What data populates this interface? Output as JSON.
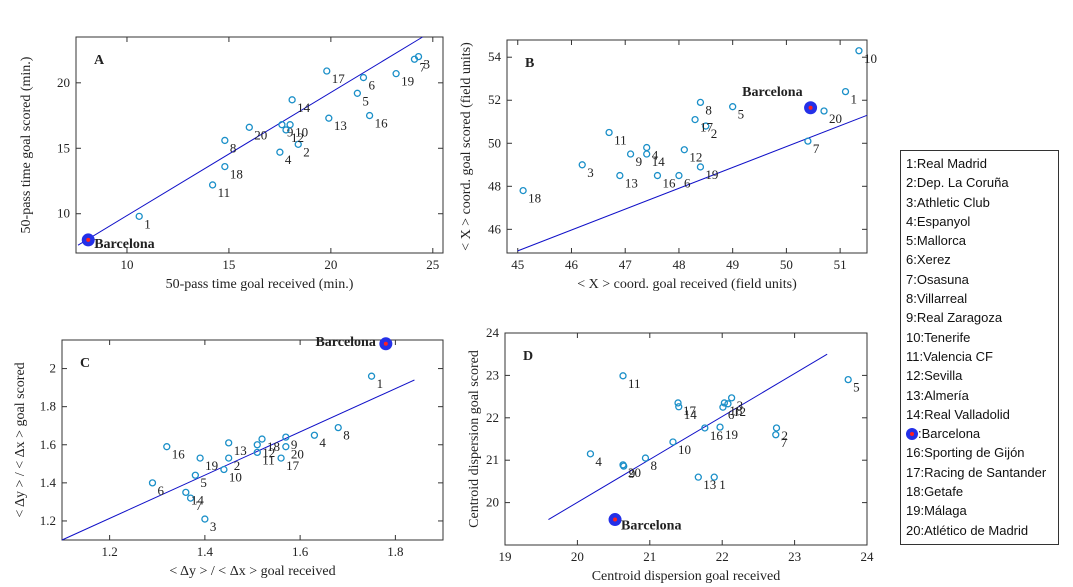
{
  "chart_data": [
    {
      "type": "scatter",
      "panel_label": "A",
      "xlabel": "50-pass time goal received (min.)",
      "ylabel": "50-pass time goal scored (min.)",
      "xlim": [
        7.5,
        25.5
      ],
      "ylim": [
        7,
        23.5
      ],
      "xticks": [
        10,
        15,
        20,
        25
      ],
      "yticks": [
        10,
        15,
        20
      ],
      "labels": [
        "1",
        "2",
        "3",
        "4",
        "5",
        "6",
        "7",
        "8",
        "9",
        "10",
        "11",
        "12",
        "13",
        "14",
        "Barcelona",
        "16",
        "17",
        "18",
        "19",
        "20"
      ],
      "x": [
        10.6,
        18.4,
        24.3,
        17.5,
        21.3,
        21.6,
        24.1,
        14.8,
        17.6,
        18.0,
        14.2,
        17.8,
        19.9,
        18.1,
        8.1,
        21.9,
        19.8,
        14.8,
        23.2,
        16.0
      ],
      "y": [
        9.8,
        15.3,
        22.0,
        14.7,
        19.2,
        20.4,
        21.8,
        15.6,
        16.8,
        16.8,
        12.2,
        16.4,
        17.3,
        18.7,
        8.0,
        17.5,
        20.9,
        13.6,
        20.7,
        16.6
      ],
      "fit": {
        "x": [
          7.6,
          24.5
        ],
        "y": [
          7.6,
          23.5
        ]
      },
      "highlight_index": 14,
      "marker_color": "#1a8fc8",
      "highlight_color": "#2430e8",
      "highlight_dot": "#ff2020",
      "line_color": "#1010c8"
    },
    {
      "type": "scatter",
      "panel_label": "B",
      "xlabel": "< X > coord. goal received (field units)",
      "ylabel": "< X > coord. goal scored (field units)",
      "xlim": [
        44.8,
        51.5
      ],
      "ylim": [
        44.9,
        54.8
      ],
      "xticks": [
        45,
        46,
        47,
        48,
        49,
        50,
        51
      ],
      "yticks": [
        46,
        48,
        50,
        52,
        54
      ],
      "labels": [
        "1",
        "2",
        "3",
        "4",
        "5",
        "6",
        "7",
        "8",
        "9",
        "10",
        "11",
        "12",
        "13",
        "14",
        "Barcelona",
        "16",
        "17",
        "18",
        "19",
        "20"
      ],
      "x": [
        51.1,
        48.5,
        46.2,
        47.4,
        49.0,
        48.0,
        50.4,
        48.4,
        47.1,
        51.35,
        46.7,
        48.1,
        46.9,
        47.4,
        50.45,
        47.6,
        48.3,
        45.1,
        48.4,
        50.7
      ],
      "y": [
        52.4,
        50.8,
        49.0,
        49.8,
        51.7,
        48.5,
        50.1,
        51.9,
        49.5,
        54.3,
        50.5,
        49.7,
        48.5,
        49.5,
        51.65,
        48.5,
        51.1,
        47.8,
        48.9,
        51.5
      ],
      "fit": {
        "x": [
          45,
          51.5
        ],
        "y": [
          45,
          51.3
        ]
      },
      "highlight_index": 14,
      "marker_color": "#1a8fc8",
      "highlight_color": "#2430e8",
      "highlight_dot": "#ff2020",
      "line_color": "#1010c8"
    },
    {
      "type": "scatter",
      "panel_label": "C",
      "xlabel": "< Δy > / < Δx > goal received",
      "ylabel": "< Δy > / < Δx > goal scored",
      "xlim": [
        1.1,
        1.9
      ],
      "ylim": [
        1.1,
        2.15
      ],
      "xticks": [
        1.2,
        1.4,
        1.6,
        1.8
      ],
      "yticks": [
        1.2,
        1.4,
        1.6,
        1.8,
        2
      ],
      "labels": [
        "1",
        "2",
        "3",
        "4",
        "5",
        "6",
        "7",
        "8",
        "9",
        "10",
        "11",
        "12",
        "13",
        "14",
        "Barcelona",
        "16",
        "17",
        "18",
        "19",
        "20"
      ],
      "x": [
        1.75,
        1.45,
        1.4,
        1.63,
        1.38,
        1.29,
        1.37,
        1.68,
        1.57,
        1.44,
        1.51,
        1.51,
        1.45,
        1.36,
        1.78,
        1.32,
        1.56,
        1.52,
        1.39,
        1.57
      ],
      "y": [
        1.96,
        1.53,
        1.21,
        1.65,
        1.44,
        1.4,
        1.32,
        1.69,
        1.64,
        1.47,
        1.56,
        1.6,
        1.61,
        1.35,
        2.13,
        1.59,
        1.53,
        1.63,
        1.53,
        1.59
      ],
      "fit": {
        "x": [
          1.1,
          1.84
        ],
        "y": [
          1.1,
          1.94
        ]
      },
      "highlight_index": 14,
      "marker_color": "#1a8fc8",
      "highlight_color": "#2430e8",
      "highlight_dot": "#ff2020",
      "line_color": "#1010c8"
    },
    {
      "type": "scatter",
      "panel_label": "D",
      "xlabel": "Centroid dispersion goal received",
      "ylabel": "Centroid dispersion goal scored",
      "xlim": [
        19,
        24
      ],
      "ylim": [
        19,
        24
      ],
      "xticks": [
        19,
        20,
        21,
        22,
        23,
        24
      ],
      "yticks": [
        20,
        21,
        22,
        23,
        24
      ],
      "labels": [
        "1",
        "2",
        "3",
        "4",
        "5",
        "6",
        "7",
        "8",
        "9",
        "10",
        "11",
        "12",
        "13",
        "14",
        "Barcelona",
        "16",
        "17",
        "18",
        "19",
        "20"
      ],
      "x": [
        21.89,
        22.75,
        22.13,
        20.18,
        23.74,
        22.01,
        22.74,
        20.94,
        20.64,
        21.32,
        20.63,
        22.08,
        21.67,
        21.4,
        20.52,
        21.76,
        21.39,
        22.03,
        21.97,
        20.63
      ],
      "y": [
        20.6,
        21.76,
        22.47,
        21.15,
        22.9,
        22.25,
        21.6,
        21.05,
        20.86,
        21.43,
        22.99,
        22.33,
        20.6,
        22.26,
        19.6,
        21.76,
        22.35,
        22.35,
        21.78,
        20.89
      ],
      "fit": {
        "x": [
          19.6,
          23.45
        ],
        "y": [
          19.6,
          23.5
        ]
      },
      "highlight_index": 14,
      "marker_color": "#1a8fc8",
      "highlight_color": "#2430e8",
      "highlight_dot": "#ff2020",
      "line_color": "#1010c8"
    }
  ],
  "legend": {
    "entries": [
      "1:Real Madrid",
      "2:Dep. La Coruña",
      "3:Athletic Club",
      "4:Espanyol",
      "5:Mallorca",
      "6:Xerez",
      "7:Osasuna",
      "8:Villarreal",
      "9:Real Zaragoza",
      "10:Tenerife",
      "11:Valencia CF",
      "12:Sevilla",
      "13:Almería",
      "14:Real Valladolid",
      ":Barcelona",
      "16:Sporting de Gijón",
      "17:Racing de Santander",
      "18:Getafe",
      "19:Málaga",
      "20:Atlético de Madrid"
    ],
    "highlight_index": 14,
    "highlight_color": "#2430e8",
    "highlight_dot": "#ff2020"
  }
}
